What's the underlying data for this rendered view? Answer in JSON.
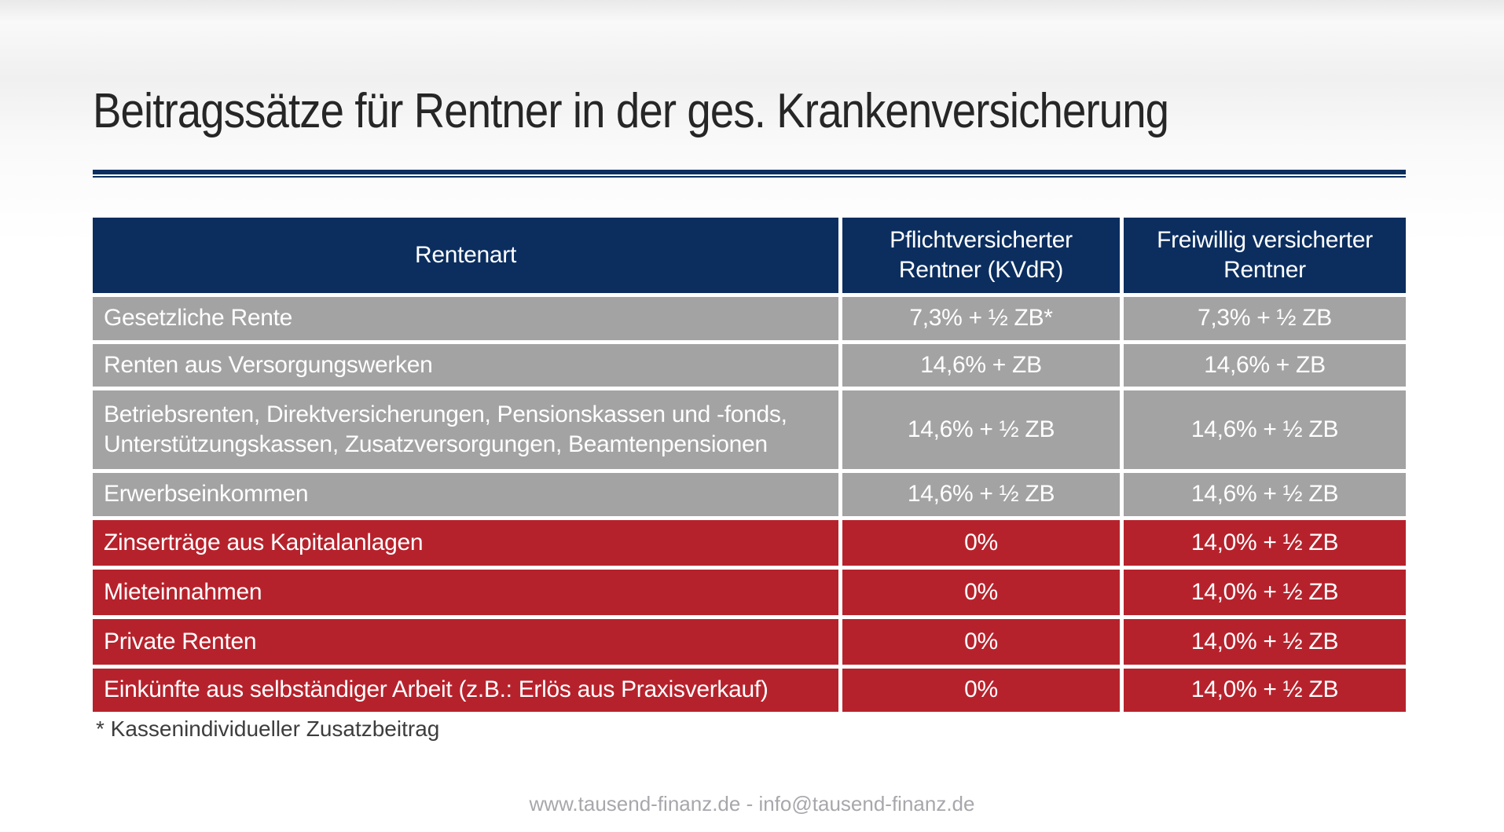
{
  "slide": {
    "title": "Beitragssätze für Rentner in der ges. Krankenversicherung",
    "footnote": "* Kassenindividueller Zusatzbeitrag",
    "footer": "www.tausend-finanz.de - info@tausend-finanz.de"
  },
  "colors": {
    "header_bg": "#0b2e5f",
    "gray_row_bg": "#a3a3a3",
    "red_row_bg": "#b6222c",
    "cell_text": "#ffffff",
    "title_text": "#262626",
    "footnote_text": "#3d3d3d",
    "footer_text": "#a7a7ac",
    "rule": "#0b2e5f"
  },
  "table": {
    "columns": [
      {
        "label": "Rentenart"
      },
      {
        "label": "Pflichtversicherter\nRentner (KVdR)"
      },
      {
        "label": "Freiwillig versicherter\nRentner"
      }
    ],
    "rows": [
      {
        "art": "Gesetzliche Rente",
        "kvdr": "7,3% + ½ ZB*",
        "freiwillig": "7,3% + ½ ZB",
        "tone": "gray",
        "tall": false
      },
      {
        "art": "Renten aus Versorgungswerken",
        "kvdr": "14,6% + ZB",
        "freiwillig": "14,6% + ZB",
        "tone": "gray",
        "tall": false
      },
      {
        "art": "Betriebsrenten, Direktversicherungen, Pensionskassen und -fonds,\nUnterstützungskassen, Zusatzversorgungen, Beamtenpensionen",
        "kvdr": "14,6% + ½ ZB",
        "freiwillig": "14,6% + ½ ZB",
        "tone": "gray",
        "tall": true
      },
      {
        "art": "Erwerbseinkommen",
        "kvdr": "14,6% + ½ ZB",
        "freiwillig": "14,6% + ½ ZB",
        "tone": "gray",
        "tall": false
      },
      {
        "art": "Zinserträge aus Kapitalanlagen",
        "kvdr": "0%",
        "freiwillig": "14,0% + ½ ZB",
        "tone": "red",
        "tall": false
      },
      {
        "art": "Mieteinnahmen",
        "kvdr": "0%",
        "freiwillig": "14,0% + ½ ZB",
        "tone": "red",
        "tall": false
      },
      {
        "art": "Private Renten",
        "kvdr": "0%",
        "freiwillig": "14,0% + ½ ZB",
        "tone": "red",
        "tall": false
      },
      {
        "art": "Einkünfte aus selbständiger Arbeit (z.B.: Erlös aus Praxisverkauf)",
        "kvdr": "0%",
        "freiwillig": "14,0% + ½ ZB",
        "tone": "red",
        "tall": false
      }
    ]
  }
}
